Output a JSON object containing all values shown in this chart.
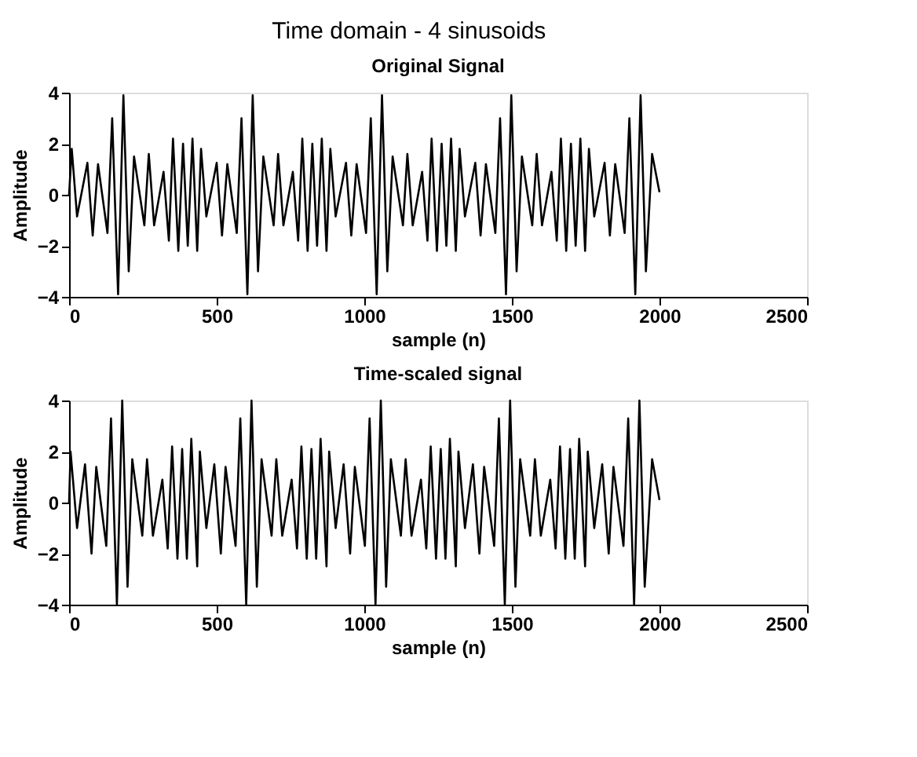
{
  "chart_data": [
    {
      "type": "line",
      "title": "Time domain - 4 sinusoids",
      "subtitle": "Original Signal",
      "xlabel": "sample (n)",
      "ylabel": "Amplitude",
      "xlim": [
        0,
        2500
      ],
      "ylim": [
        -4,
        4
      ],
      "xticks": [
        0,
        500,
        1000,
        1500,
        2000,
        2500
      ],
      "yticks": [
        -4,
        -2,
        0,
        2,
        4
      ],
      "grid": false,
      "series": [
        {
          "color": "#000000",
          "x": [
            0,
            9,
            27,
            62,
            80,
            98,
            130,
            146,
            166,
            184,
            202,
            220,
            255,
            270,
            288,
            320,
            338,
            352,
            370,
            386,
            402,
            418,
            434,
            447,
            465,
            500,
            518,
            536,
            568,
            584,
            604,
            622,
            640,
            658,
            693,
            708,
            726,
            758,
            776,
            790,
            808,
            824,
            840,
            856,
            872,
            885,
            903,
            938,
            956,
            974,
            1006,
            1022,
            1042,
            1060,
            1078,
            1096,
            1131,
            1146,
            1164,
            1196,
            1214,
            1228,
            1246,
            1262,
            1278,
            1294,
            1310,
            1323,
            1341,
            1376,
            1394,
            1412,
            1444,
            1460,
            1480,
            1498,
            1516,
            1534,
            1569,
            1584,
            1602,
            1634,
            1652,
            1666,
            1684,
            1700,
            1716,
            1732,
            1748,
            1761,
            1779,
            1814,
            1832,
            1850,
            1882,
            1898,
            1918,
            1936,
            1954,
            1975,
            2000
          ],
          "values": [
            0,
            1.8,
            -0.85,
            1.25,
            -1.6,
            1.2,
            -1.5,
            3.0,
            -3.9,
            3.9,
            -3.0,
            1.5,
            -1.2,
            1.6,
            -1.2,
            0.9,
            -1.8,
            2.2,
            -2.2,
            2.0,
            -2.0,
            2.2,
            -2.2,
            1.8,
            -0.85,
            1.25,
            -1.6,
            1.2,
            -1.5,
            3.0,
            -3.9,
            3.9,
            -3.0,
            1.5,
            -1.2,
            1.6,
            -1.2,
            0.9,
            -1.8,
            2.2,
            -2.2,
            2.0,
            -2.0,
            2.2,
            -2.2,
            1.8,
            -0.85,
            1.25,
            -1.6,
            1.2,
            -1.5,
            3.0,
            -3.9,
            3.9,
            -3.0,
            1.5,
            -1.2,
            1.6,
            -1.2,
            0.9,
            -1.8,
            2.2,
            -2.2,
            2.0,
            -2.0,
            2.2,
            -2.2,
            1.8,
            -0.85,
            1.25,
            -1.6,
            1.2,
            -1.5,
            3.0,
            -3.9,
            3.9,
            -3.0,
            1.5,
            -1.2,
            1.6,
            -1.2,
            0.9,
            -1.8,
            2.2,
            -2.2,
            2.0,
            -2.0,
            2.2,
            -2.2,
            1.8,
            -0.85,
            1.25,
            -1.6,
            1.2,
            -1.5,
            3.0,
            -3.9,
            3.9,
            -3.0,
            1.6,
            0.1
          ]
        }
      ]
    },
    {
      "type": "line",
      "title": "Time-scaled signal",
      "xlabel": "sample (n)",
      "ylabel": "Amplitude",
      "xlim": [
        0,
        2500
      ],
      "ylim": [
        -4,
        4
      ],
      "xticks": [
        0,
        500,
        1000,
        1500,
        2000,
        2500
      ],
      "yticks": [
        -4,
        -2,
        0,
        2,
        4
      ],
      "grid": false,
      "series": [
        {
          "color": "#000000",
          "x": [
            0,
            5,
            27,
            54,
            76,
            92,
            126,
            142,
            162,
            180,
            198,
            214,
            248,
            264,
            284,
            316,
            334,
            349,
            367,
            383,
            399,
            414,
            434,
            443,
            465,
            492,
            514,
            530,
            564,
            580,
            600,
            618,
            636,
            652,
            686,
            702,
            722,
            754,
            772,
            787,
            805,
            821,
            837,
            852,
            872,
            881,
            903,
            930,
            952,
            968,
            1002,
            1018,
            1038,
            1056,
            1074,
            1090,
            1124,
            1140,
            1160,
            1192,
            1210,
            1225,
            1243,
            1259,
            1275,
            1290,
            1310,
            1319,
            1341,
            1368,
            1390,
            1406,
            1440,
            1456,
            1476,
            1494,
            1512,
            1528,
            1562,
            1578,
            1598,
            1630,
            1648,
            1663,
            1681,
            1697,
            1713,
            1728,
            1748,
            1757,
            1779,
            1806,
            1828,
            1844,
            1878,
            1894,
            1914,
            1932,
            1950,
            1975,
            2000
          ],
          "values": [
            0,
            2.0,
            -1.0,
            1.5,
            -2.0,
            1.4,
            -1.7,
            3.3,
            -4.0,
            4.0,
            -3.3,
            1.7,
            -1.3,
            1.7,
            -1.3,
            0.9,
            -1.8,
            2.2,
            -2.2,
            2.1,
            -2.2,
            2.5,
            -2.5,
            2.0,
            -1.0,
            1.5,
            -2.0,
            1.4,
            -1.7,
            3.3,
            -4.0,
            4.0,
            -3.3,
            1.7,
            -1.3,
            1.7,
            -1.3,
            0.9,
            -1.8,
            2.2,
            -2.2,
            2.1,
            -2.2,
            2.5,
            -2.5,
            2.0,
            -1.0,
            1.5,
            -2.0,
            1.4,
            -1.7,
            3.3,
            -4.0,
            4.0,
            -3.3,
            1.7,
            -1.3,
            1.7,
            -1.3,
            0.9,
            -1.8,
            2.2,
            -2.2,
            2.1,
            -2.2,
            2.5,
            -2.5,
            2.0,
            -1.0,
            1.5,
            -2.0,
            1.4,
            -1.7,
            3.3,
            -4.0,
            4.0,
            -3.3,
            1.7,
            -1.3,
            1.7,
            -1.3,
            0.9,
            -1.8,
            2.2,
            -2.2,
            2.1,
            -2.2,
            2.5,
            -2.5,
            2.0,
            -1.0,
            1.5,
            -2.0,
            1.4,
            -1.7,
            3.3,
            -4.0,
            4.0,
            -3.3,
            1.7,
            0.1
          ]
        }
      ]
    }
  ]
}
